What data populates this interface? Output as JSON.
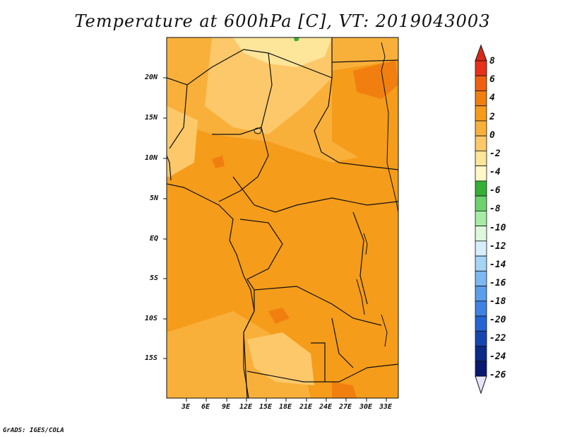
{
  "title": "Temperature at 600hPa [C], VT: 2019043003",
  "footer": "GrADS: IGES/COLA",
  "map": {
    "lat_labels": [
      "20N",
      "15N",
      "10N",
      "5N",
      "EQ",
      "5S",
      "10S",
      "15S"
    ],
    "lon_labels": [
      "3E",
      "6E",
      "9E",
      "12E",
      "15E",
      "18E",
      "21E",
      "24E",
      "27E",
      "30E",
      "33E"
    ]
  },
  "colorbar": {
    "labels": [
      "8",
      "6",
      "4",
      "2",
      "0",
      "-2",
      "-4",
      "-6",
      "-8",
      "-10",
      "-12",
      "-14",
      "-16",
      "-18",
      "-20",
      "-22",
      "-24",
      "-26"
    ],
    "colors": [
      "#e8301a",
      "#f06010",
      "#f07f10",
      "#f59c1a",
      "#f9b03a",
      "#fcc86a",
      "#fde59a",
      "#fff8c8",
      "#35b035",
      "#6ed26e",
      "#a6eca6",
      "#ddf8dd",
      "#d6eefc",
      "#a6d4f6",
      "#7cb8f2",
      "#5a9eec",
      "#3f82e2",
      "#2564d4",
      "#1546b0",
      "#0a2a88",
      "#0a1870"
    ],
    "top_arrow_color": "#d8281a",
    "bottom_arrow_color": "#e6e6f8"
  }
}
